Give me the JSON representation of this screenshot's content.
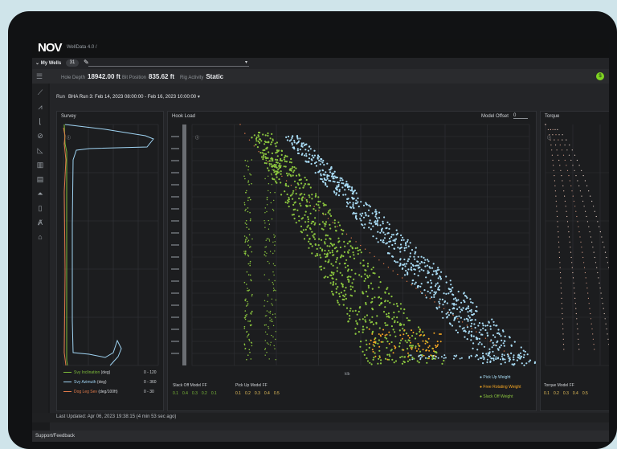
{
  "app": {
    "logo": "NOV",
    "name": "WellData 4.0 /"
  },
  "well_selector": {
    "label": "My Wells",
    "count": "31"
  },
  "stats": [
    {
      "label": "Hole Depth",
      "value": "18942.00 ft"
    },
    {
      "label": "Bit Position",
      "value": "835.62 ft"
    },
    {
      "label": "Rig Activity",
      "value": "Static"
    }
  ],
  "run": {
    "label": "Run",
    "value": "BHA Run 3: Feb 14, 2023 08:00:00 - Feb 16, 2023 10:00:00"
  },
  "survey": {
    "title": "Survey",
    "legend": [
      {
        "name": "Svy Inclination",
        "unit": "(deg)",
        "range": "0 - 120",
        "color": "#7dbb3a"
      },
      {
        "name": "Svy Azimuth",
        "unit": "(deg)",
        "range": "0 - 360",
        "color": "#9fd3f2"
      },
      {
        "name": "Dog Leg Sev",
        "unit": "(deg/100ft)",
        "range": "0 - 30",
        "color": "#e07a4a"
      }
    ]
  },
  "hookload": {
    "title": "Hook Load",
    "model_offset_label": "Model Offset",
    "model_offset_value": "0",
    "xlabel": "klb",
    "legend": [
      {
        "name": "Pick Up Weight",
        "color": "#a9dcf5"
      },
      {
        "name": "Free Rotating Weight",
        "color": "#f5a623"
      },
      {
        "name": "Slack Off Weight",
        "color": "#8bc63f"
      }
    ],
    "slack_off_model_label": "Slack Off Model FF",
    "slack_off_values": [
      "0.1",
      "0.4",
      "0.3",
      "0.2",
      "0.1"
    ],
    "pick_up_model_label": "Pick Up Model FF",
    "pick_up_values": [
      "0.1",
      "0.2",
      "0.3",
      "0.4",
      "0.5"
    ]
  },
  "torque": {
    "title": "Torque",
    "model_label": "Torque Model FF",
    "values": [
      "0.1",
      "0.2",
      "0.3",
      "0.4",
      "0.5"
    ]
  },
  "footer": {
    "last_updated": "Last Updated: Apr 06, 2023 19:38:15 (4 min 53 sec ago)"
  },
  "support": {
    "label": "Support/Feedback"
  },
  "colors": {
    "pick_up": "#a9dcf5",
    "slack_off": "#8bc63f",
    "rotating": "#f5a623",
    "accent_green": "#7ed321"
  },
  "icons": [
    "hamburger-icon",
    "line-chart-icon",
    "area-chart-icon",
    "step-chart-icon",
    "drill-icon",
    "triangle-chart-icon",
    "bar-chart-icon",
    "document-icon",
    "bell-icon",
    "clipboard-icon",
    "rig-icon",
    "building-icon"
  ]
}
